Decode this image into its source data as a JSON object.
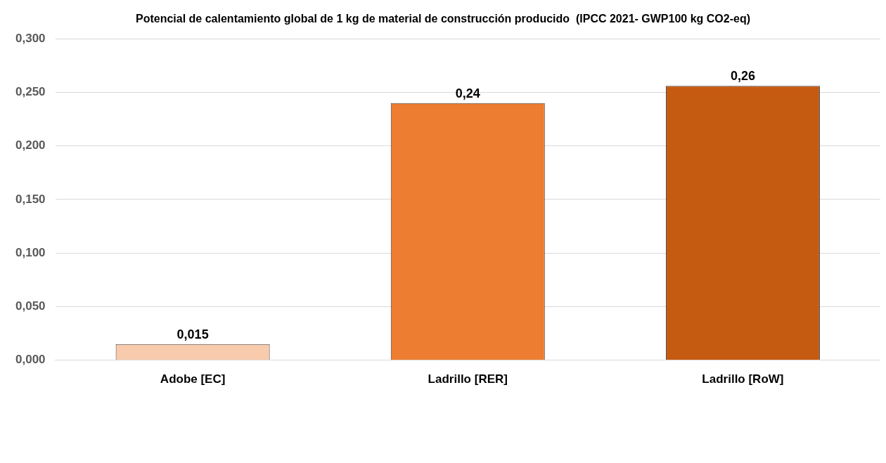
{
  "chart_data": {
    "type": "bar",
    "title": "Potencial de calentamiento global de 1 kg de material de construcción producido  (IPCC 2021- GWP100 kg CO2-eq)",
    "categories": [
      "Adobe [EC]",
      "Ladrillo [RER]",
      "Ladrillo [RoW]"
    ],
    "values": [
      0.015,
      0.24,
      0.256
    ],
    "colors": [
      "#f8cbad",
      "#ed7d31",
      "#c55a11"
    ],
    "value_labels": [
      "0,015",
      "0,24",
      "0,26"
    ],
    "ylim": [
      0,
      0.3
    ],
    "yticks": [
      {
        "value": 0,
        "label": "0,000"
      },
      {
        "value": 0.05,
        "label": "0,050"
      },
      {
        "value": 0.1,
        "label": "0,100"
      },
      {
        "value": 0.15,
        "label": "0,150"
      },
      {
        "value": 0.2,
        "label": "0,200"
      },
      {
        "value": 0.25,
        "label": "0,250"
      },
      {
        "value": 0.3,
        "label": "0,300"
      }
    ],
    "grid": "y",
    "legend": false
  }
}
